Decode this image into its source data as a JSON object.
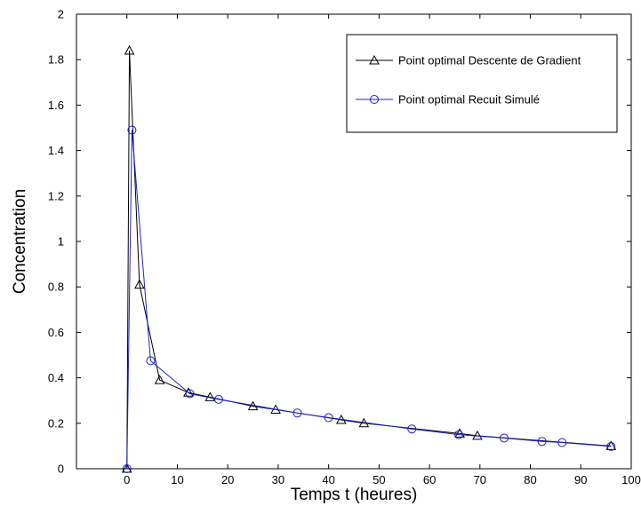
{
  "chart_data": {
    "type": "line",
    "title": "",
    "xlabel": "Temps t (heures)",
    "ylabel": "Concentration",
    "xlim": [
      -10,
      100
    ],
    "ylim": [
      0,
      2
    ],
    "xticks": [
      0,
      10,
      20,
      30,
      40,
      50,
      60,
      70,
      80,
      90,
      100
    ],
    "yticks": [
      0,
      0.2,
      0.4,
      0.6,
      0.8,
      1,
      1.2,
      1.4,
      1.6,
      1.8,
      2
    ],
    "grid": false,
    "legend_position": "top-right",
    "series": [
      {
        "name": "Point optimal Descente de Gradient",
        "color": "#000000",
        "marker": "triangle",
        "x": [
          0,
          0.5,
          2.5,
          6.5,
          12.2,
          16.5,
          25,
          29.5,
          42.5,
          47,
          66,
          69.5,
          96
        ],
        "y": [
          0,
          1.84,
          0.81,
          0.39,
          0.335,
          0.315,
          0.275,
          0.26,
          0.215,
          0.2,
          0.155,
          0.145,
          0.1
        ]
      },
      {
        "name": "Point optimal Recuit Simulé",
        "color": "#1f1fd6",
        "marker": "circle",
        "x": [
          0,
          1,
          4.7,
          12.5,
          18.2,
          33.8,
          40,
          56.5,
          65.8,
          74.8,
          82.3,
          86.3,
          96
        ],
        "y": [
          0,
          1.49,
          0.475,
          0.33,
          0.305,
          0.245,
          0.225,
          0.175,
          0.15,
          0.135,
          0.12,
          0.115,
          0.098
        ]
      }
    ]
  }
}
